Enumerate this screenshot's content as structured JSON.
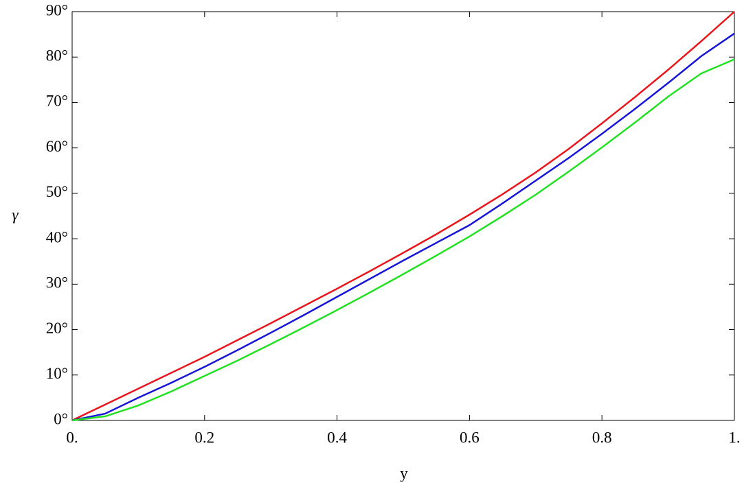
{
  "chart_data": {
    "type": "line",
    "x_label": "y",
    "y_label": "γ",
    "x": [
      0,
      0.05,
      0.1,
      0.15,
      0.2,
      0.25,
      0.3,
      0.35,
      0.4,
      0.45,
      0.5,
      0.55,
      0.6,
      0.65,
      0.7,
      0.75,
      0.8,
      0.85,
      0.9,
      0.95,
      1
    ],
    "series": [
      {
        "color": "#e8151b",
        "values": [
          0,
          3.5,
          7,
          10.5,
          14,
          17.7,
          21.4,
          25.2,
          29,
          32.9,
          36.9,
          41,
          45.3,
          49.8,
          54.6,
          59.8,
          65.4,
          71.2,
          77.2,
          83.5,
          90
        ]
      },
      {
        "color": "#1515d8",
        "values": [
          0,
          1.5,
          5,
          8.3,
          11.8,
          15.5,
          19.3,
          23.2,
          27.2,
          31.2,
          35.2,
          39.1,
          43,
          47.8,
          52.8,
          57.8,
          63.1,
          68.6,
          74.3,
          80.2,
          85.2
        ]
      },
      {
        "color": "#22e022",
        "values": [
          0,
          0.9,
          3.3,
          6.4,
          9.8,
          13.2,
          16.8,
          20.5,
          24.3,
          28.2,
          32.2,
          36.3,
          40.5,
          45,
          49.7,
          54.8,
          60.1,
          65.6,
          71.3,
          76.4,
          79.5
        ]
      }
    ],
    "xlim": [
      0,
      1
    ],
    "xticks": [
      {
        "value": 0,
        "label": "0."
      },
      0.2,
      0.4,
      0.6,
      0.8,
      {
        "value": 1,
        "label": "1."
      }
    ],
    "ylim": [
      0,
      90
    ],
    "yticks": [
      {
        "value": 0,
        "label": "0°"
      },
      {
        "value": 10,
        "label": "10°"
      },
      {
        "value": 20,
        "label": "20°"
      },
      {
        "value": 30,
        "label": "30°"
      },
      {
        "value": 40,
        "label": "40°"
      },
      {
        "value": 50,
        "label": "50°"
      },
      {
        "value": 60,
        "label": "60°"
      },
      {
        "value": 70,
        "label": "70°"
      },
      {
        "value": 80,
        "label": "80°"
      },
      {
        "value": 90,
        "label": "90°"
      }
    ]
  }
}
